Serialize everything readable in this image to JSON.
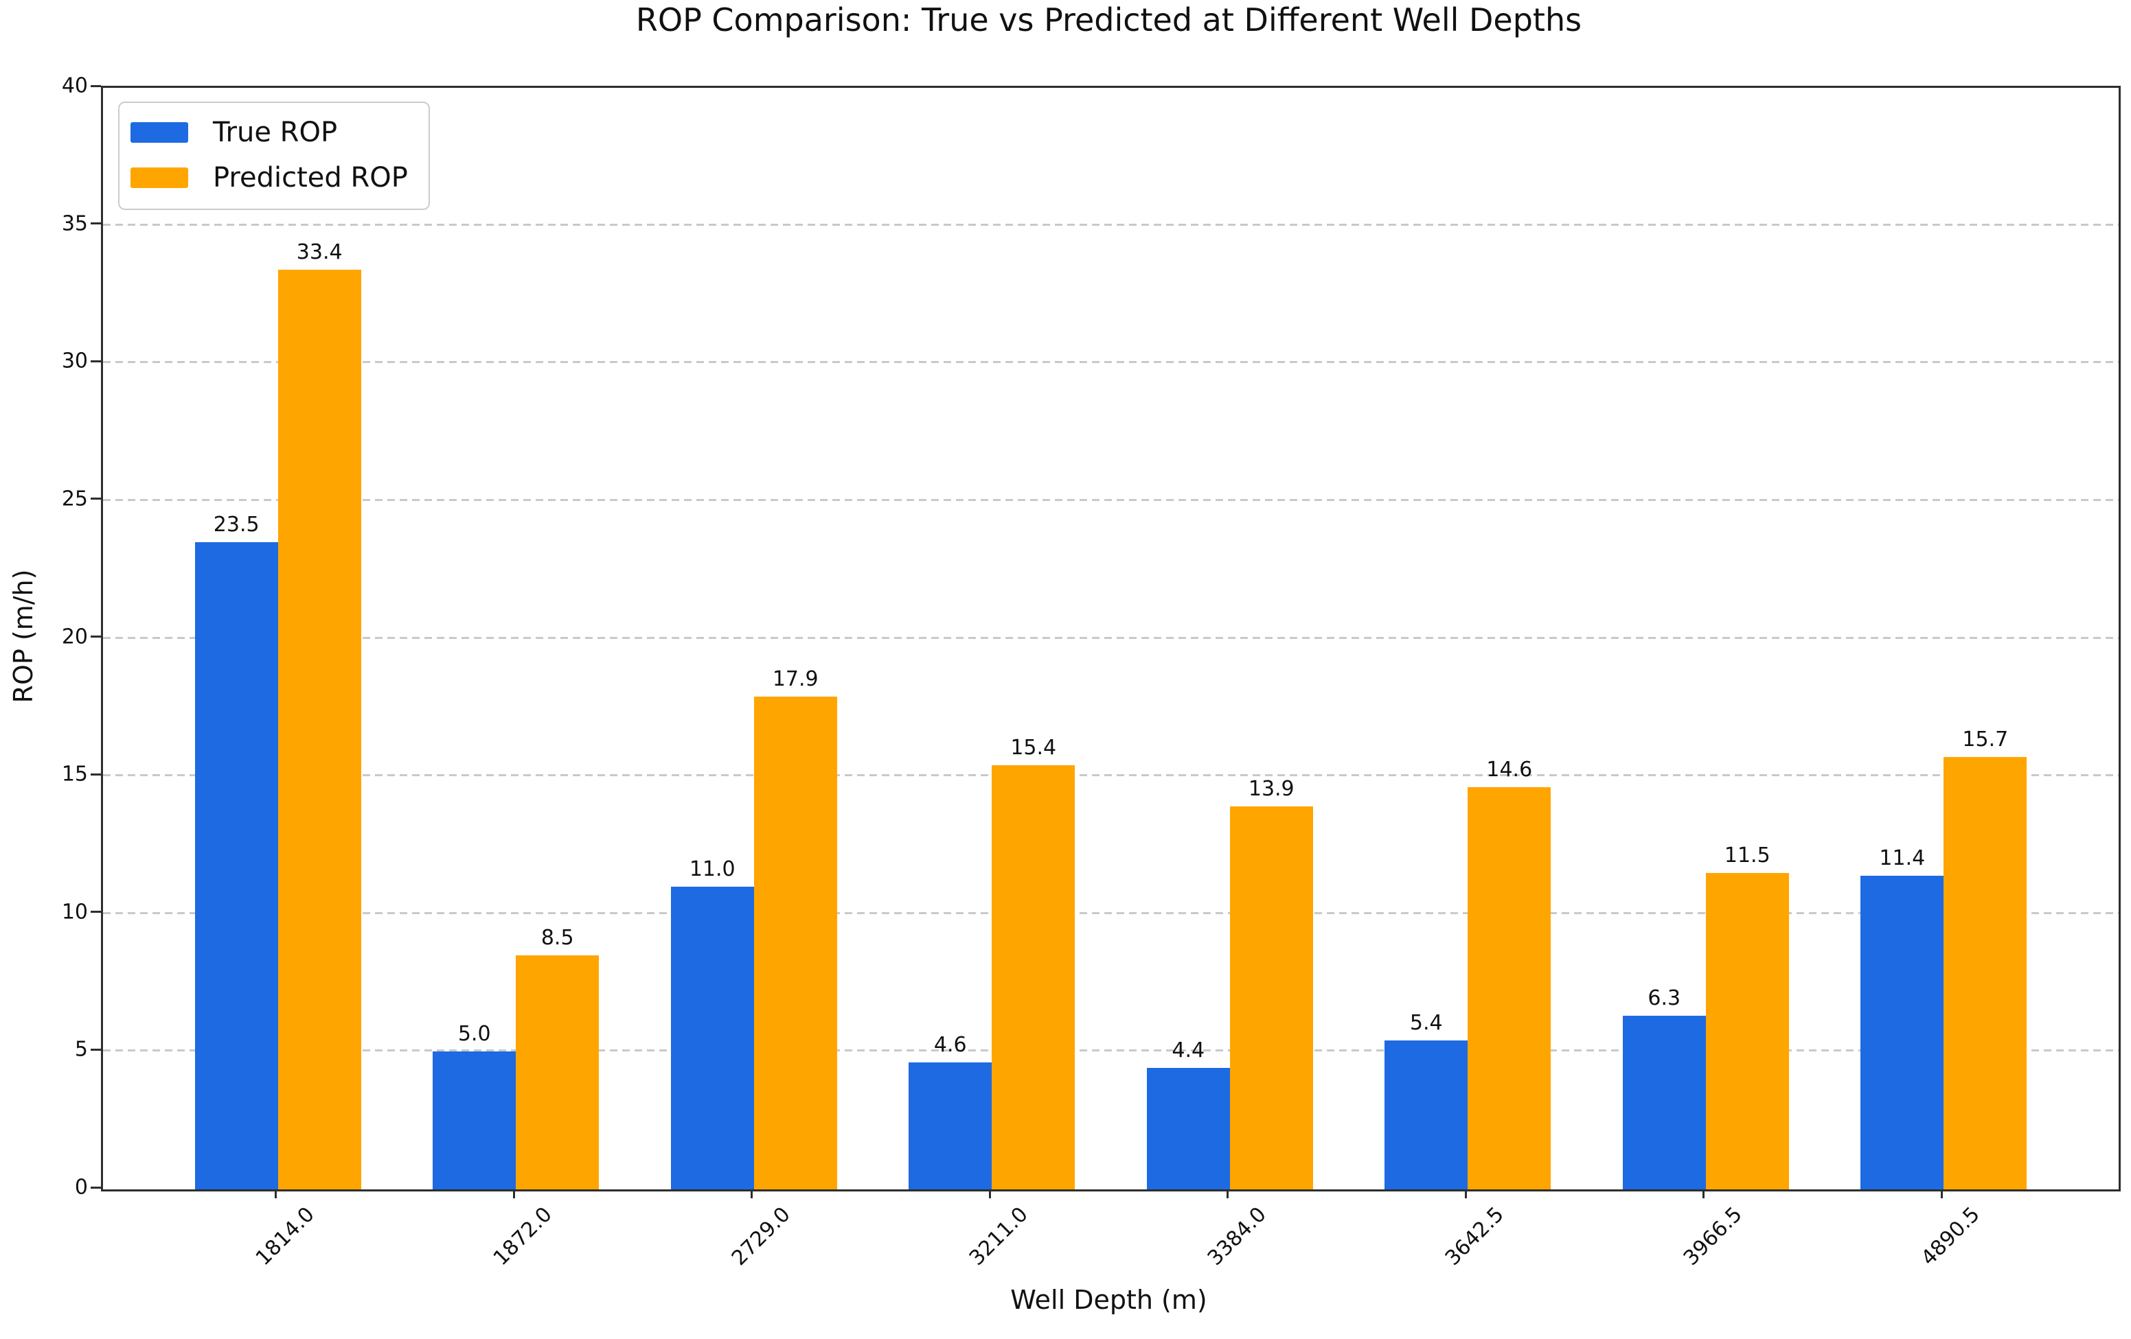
{
  "chart_data": {
    "type": "bar",
    "title": "ROP Comparison: True vs Predicted at Different Well Depths",
    "xlabel": "Well Depth (m)",
    "ylabel": "ROP (m/h)",
    "categories": [
      "1814.0",
      "1872.0",
      "2729.0",
      "3211.0",
      "3384.0",
      "3642.5",
      "3966.5",
      "4890.5"
    ],
    "series": [
      {
        "name": "True ROP",
        "color": "#1e6ae2",
        "values": [
          23.5,
          5.0,
          11.0,
          4.6,
          4.4,
          5.4,
          6.3,
          11.4
        ]
      },
      {
        "name": "Predicted ROP",
        "color": "#ffa500",
        "values": [
          33.4,
          8.5,
          17.9,
          15.4,
          13.9,
          14.6,
          11.5,
          15.7
        ]
      }
    ],
    "ylim": [
      0,
      40
    ],
    "yticks": [
      0,
      5,
      10,
      15,
      20,
      25,
      30,
      35,
      40
    ],
    "grid": true,
    "grid_axis": "y",
    "grid_style": "dashed",
    "legend_position": "upper left",
    "bar_value_labels": true
  },
  "colors": {
    "true_rop": "#1e6ae2",
    "predicted_rop": "#ffa500",
    "spine": "#2d2d2d",
    "grid": "#c9c9c9",
    "text": "#111111",
    "background": "#ffffff"
  }
}
